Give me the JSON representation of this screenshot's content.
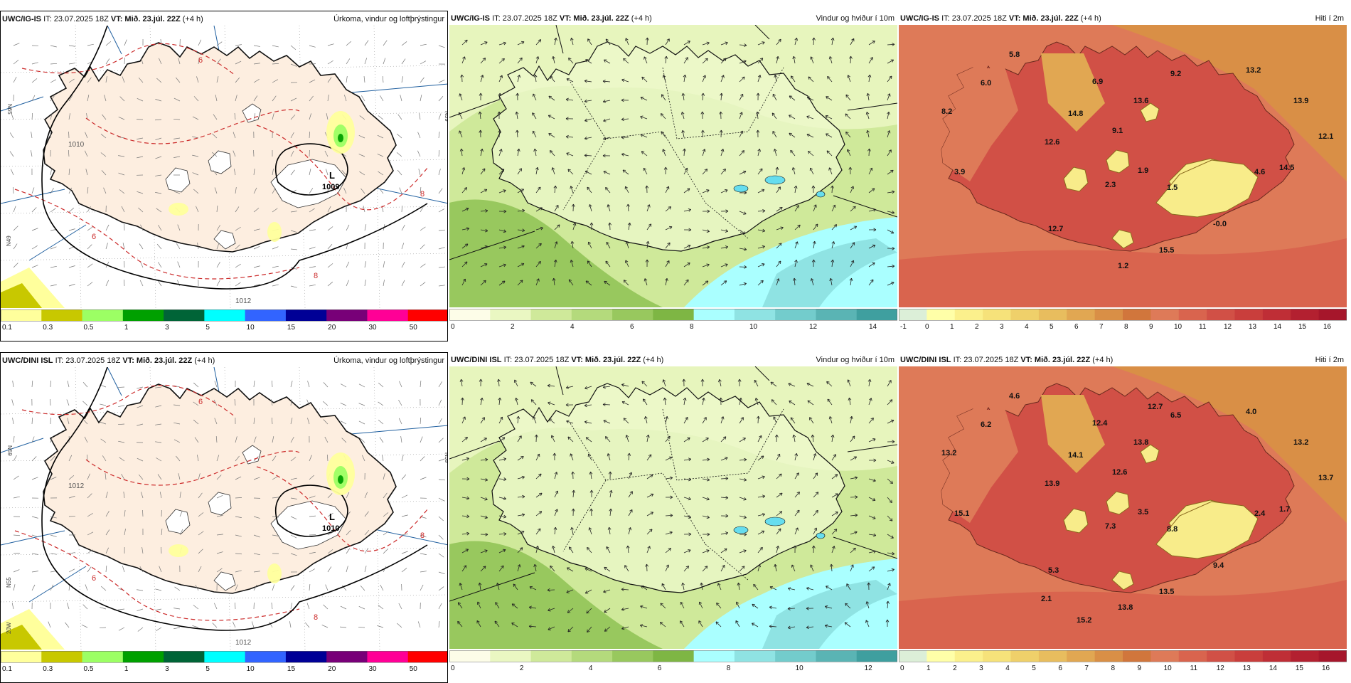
{
  "panels": [
    {
      "model": "UWC/IG-IS",
      "it": "IT: 23.07.2025 18Z",
      "vt_label": "VT:",
      "vt": "Mið. 23.júl. 22Z",
      "lead": "(+4 h)",
      "product": "Úrkoma, vindur og loftþrýstingur",
      "kind": "precip",
      "pressure_lows": [
        {
          "symbol": "L",
          "value": "1009"
        }
      ],
      "isobar_labels": [
        "1010",
        "1012"
      ],
      "temp_dash_labels": [
        "6",
        "6",
        "8",
        "8"
      ],
      "grid_labels": [
        "N65",
        "N59",
        "N49"
      ]
    },
    {
      "model": "UWC/IG-IS",
      "it": "IT: 23.07.2025 18Z",
      "vt_label": "VT:",
      "vt": "Mið. 23.júl. 22Z",
      "lead": "(+4 h)",
      "product": "Vindur og hviður í 10m",
      "kind": "wind"
    },
    {
      "model": "UWC/IG-IS",
      "it": "IT: 23.07.2025 18Z",
      "vt_label": "VT:",
      "vt": "Mið. 23.júl. 22Z",
      "lead": "(+4 h)",
      "product": "Hiti í 2m",
      "kind": "temp",
      "temp_labels": [
        "5.8",
        "6.0",
        "8.2",
        "6.9",
        "9.2",
        "13.2",
        "14.8",
        "13.6",
        "13.9",
        "9.1",
        "12.1",
        "12.6",
        "3.9",
        "2.3",
        "1.9",
        "14.5",
        "4.6",
        "1.5",
        "12.7",
        "-0.0",
        "15.5",
        "1.2"
      ]
    },
    {
      "model": "UWC/DINI ISL",
      "it": "IT: 23.07.2025 18Z",
      "vt_label": "VT:",
      "vt": "Mið. 23.júl. 22Z",
      "lead": "(+4 h)",
      "product": "Úrkoma, vindur og loftþrýstingur",
      "kind": "precip",
      "pressure_lows": [
        {
          "symbol": "L",
          "value": "1010"
        }
      ],
      "isobar_labels": [
        "1012",
        "1012"
      ],
      "temp_dash_labels": [
        "6",
        "6",
        "8",
        "8"
      ],
      "grid_labels": [
        "N59",
        "N59",
        "N55",
        "20W"
      ]
    },
    {
      "model": "UWC/DINI ISL",
      "it": "IT: 23.07.2025 18Z",
      "vt_label": "VT:",
      "vt": "Mið. 23.júl. 22Z",
      "lead": "(+4 h)",
      "product": "Vindur og hviður í 10m",
      "kind": "wind"
    },
    {
      "model": "UWC/DINI ISL",
      "it": "IT: 23.07.2025 18Z",
      "vt_label": "VT:",
      "vt": "Mið. 23.júl. 22Z",
      "lead": "(+4 h)",
      "product": "Hiti í 2m",
      "kind": "temp",
      "temp_labels": [
        "4.6",
        "6.2",
        "13.2",
        "12.4",
        "6.5",
        "4.0",
        "14.1",
        "13.8",
        "13.2",
        "12.6",
        "13.7",
        "13.9",
        "15.1",
        "7.3",
        "3.5",
        "1.7",
        "2.4",
        "8.8",
        "5.3",
        "9.4",
        "13.5",
        "13.8",
        "12.7",
        "15.2",
        "2.1"
      ]
    }
  ],
  "legends": {
    "precip": {
      "colors": [
        "#ffff9c",
        "#c8c800",
        "#9cff64",
        "#00a000",
        "#006437",
        "#00ffff",
        "#3264ff",
        "#000096",
        "#780078",
        "#ff0096",
        "#ff0000"
      ],
      "labels": [
        "0.1",
        "0.3",
        "0.5",
        "1",
        "3",
        "5",
        "10",
        "15",
        "20",
        "30",
        "50"
      ]
    },
    "wind": {
      "colors": [
        "#fdfde8",
        "#eaf7c2",
        "#cfe99a",
        "#b4da7c",
        "#98c85e",
        "#7eb644",
        "#aaffff",
        "#8fe3e3",
        "#73cccc",
        "#5ab4b4",
        "#3f9f9f"
      ],
      "labels_top": [
        "0",
        "2",
        "4",
        "6",
        "8",
        "10",
        "12",
        "14"
      ],
      "labels_bottom": [
        "0",
        "2",
        "4",
        "6",
        "8",
        "10",
        "12"
      ]
    },
    "temp": {
      "colors": [
        "#dcefd8",
        "#ffffa8",
        "#fbf08c",
        "#f6e27a",
        "#efd06a",
        "#e8bd5e",
        "#e1a752",
        "#d98f46",
        "#d1763c",
        "#de7a58",
        "#d9644e",
        "#d15046",
        "#c93e3c",
        "#bf2e36",
        "#b32030",
        "#a6162b"
      ],
      "labels_top": [
        "-1",
        "0",
        "1",
        "2",
        "3",
        "4",
        "5",
        "6",
        "7",
        "8",
        "9",
        "10",
        "11",
        "12",
        "13",
        "14",
        "15",
        "16"
      ],
      "labels_bottom": [
        "0",
        "1",
        "2",
        "3",
        "4",
        "5",
        "6",
        "7",
        "8",
        "9",
        "10",
        "11",
        "12",
        "13",
        "14",
        "15",
        "16"
      ]
    }
  },
  "colors": {
    "land_precip": "#fdeee0",
    "sea_precip": "#ffffff",
    "isobar": "#000000",
    "temp_dash": "#cc2b2b",
    "grid_line": "#1f5f9f",
    "sea_wind": "#cfe99a",
    "sea_wind_high": "#aaffff",
    "temp_sea": "#de7a58",
    "temp_cold": "#f8ec8a"
  }
}
